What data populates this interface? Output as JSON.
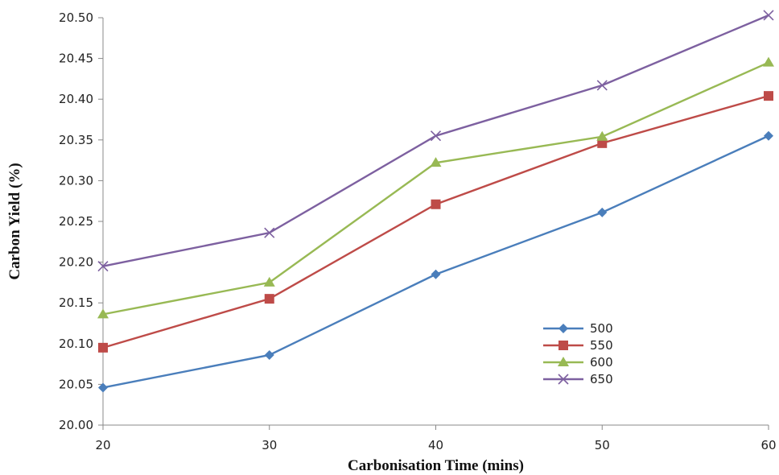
{
  "chart_data": {
    "type": "line",
    "xlabel": "Carbonisation Time (mins)",
    "ylabel": "Carbon Yield (%)",
    "x": [
      20,
      30,
      40,
      50,
      60
    ],
    "xlim": [
      20,
      60
    ],
    "ylim": [
      20.0,
      20.5
    ],
    "x_ticks": [
      "20",
      "30",
      "40",
      "50",
      "60"
    ],
    "y_ticks": [
      "20.00",
      "20.05",
      "20.10",
      "20.15",
      "20.20",
      "20.25",
      "20.30",
      "20.35",
      "20.40",
      "20.45",
      "20.50"
    ],
    "grid": false,
    "legend_position": "lower-right",
    "series": [
      {
        "name": "500",
        "values": [
          20.046,
          20.086,
          20.185,
          20.261,
          20.355
        ],
        "color": "#4a7ebb",
        "marker": "diamond"
      },
      {
        "name": "550",
        "values": [
          20.095,
          20.155,
          20.271,
          20.346,
          20.404
        ],
        "color": "#be4b48",
        "marker": "square"
      },
      {
        "name": "600",
        "values": [
          20.136,
          20.175,
          20.322,
          20.354,
          20.445
        ],
        "color": "#98b954",
        "marker": "triangle"
      },
      {
        "name": "650",
        "values": [
          20.195,
          20.236,
          20.355,
          20.417,
          20.503
        ],
        "color": "#7d60a0",
        "marker": "x"
      }
    ]
  }
}
